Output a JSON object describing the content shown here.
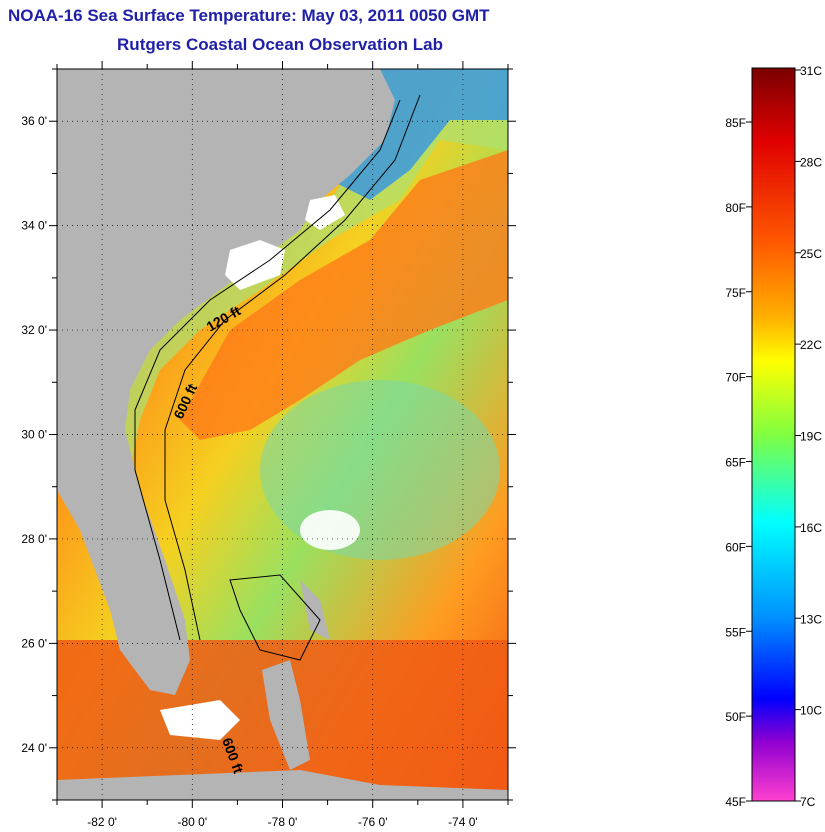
{
  "header": {
    "title": "NOAA-16 Sea Surface Temperature:  May 03, 2011 0050 GMT",
    "subtitle": "Rutgers Coastal Ocean Observation Lab"
  },
  "map": {
    "lon_range": [
      -83,
      -73
    ],
    "lat_range": [
      23,
      37
    ],
    "lat_ticks": [
      {
        "lat": 36,
        "label": "36 0'"
      },
      {
        "lat": 34,
        "label": "34 0'"
      },
      {
        "lat": 32,
        "label": "32 0'"
      },
      {
        "lat": 30,
        "label": "30 0'"
      },
      {
        "lat": 28,
        "label": "28 0'"
      },
      {
        "lat": 26,
        "label": "26 0'"
      },
      {
        "lat": 24,
        "label": "24 0'"
      }
    ],
    "lon_ticks": [
      {
        "lon": -82,
        "label": "-82 0'"
      },
      {
        "lon": -80,
        "label": "-80 0'"
      },
      {
        "lon": -78,
        "label": "-78 0'"
      },
      {
        "lon": -76,
        "label": "-76 0'"
      },
      {
        "lon": -74,
        "label": "-74 0'"
      }
    ],
    "contour_labels": [
      "120 ft",
      "600 ft",
      "600 ft"
    ],
    "colors": {
      "land": "#b4b4b4",
      "warm": "#f05a14",
      "mid": "#f0e020",
      "cool": "#20c0e8",
      "cloud": "#ffffff"
    }
  },
  "colorbar": {
    "celsius_labels": [
      "31C",
      "28C",
      "25C",
      "22C",
      "19C",
      "16C",
      "13C",
      "10C",
      "7C"
    ],
    "fahrenheit_labels": [
      "85F",
      "80F",
      "75F",
      "70F",
      "65F",
      "60F",
      "55F",
      "50F",
      "45F"
    ],
    "stops": [
      "#7a0000",
      "#e00000",
      "#ff5a00",
      "#ffa000",
      "#ffff00",
      "#80ff40",
      "#00ffff",
      "#00a0ff",
      "#0000ff",
      "#8000c0",
      "#ff40c0"
    ]
  }
}
